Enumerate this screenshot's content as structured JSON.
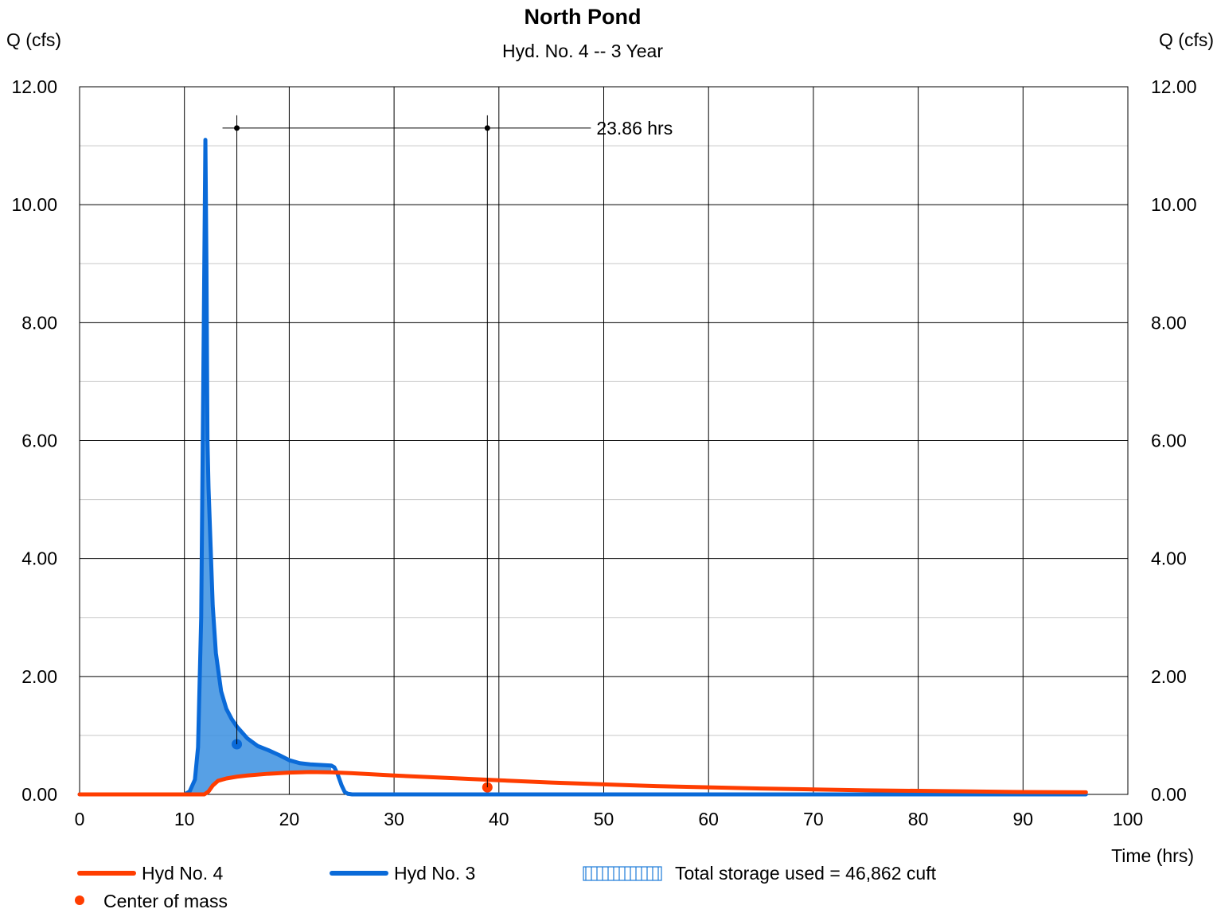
{
  "chart_data": {
    "type": "line",
    "title": "North Pond",
    "subtitle": "Hyd. No. 4 -- 3 Year",
    "ylabel_left": "Q (cfs)",
    "ylabel_right": "Q (cfs)",
    "xlabel": "Time (hrs)",
    "xlim": [
      0,
      100
    ],
    "ylim": [
      0,
      12
    ],
    "x_ticks": [
      "0",
      "10",
      "20",
      "30",
      "40",
      "50",
      "60",
      "70",
      "80",
      "90",
      "100"
    ],
    "y_ticks": [
      "0.00",
      "2.00",
      "4.00",
      "6.00",
      "8.00",
      "10.00",
      "12.00"
    ],
    "grid": true,
    "series": [
      {
        "name": "Hyd No. 3",
        "color": "#0a6ad8",
        "x": [
          0,
          10,
          10.5,
          11,
          11.3,
          11.6,
          11.8,
          12.0,
          12.1,
          12.2,
          12.3,
          12.5,
          12.7,
          13.0,
          13.5,
          14.0,
          14.5,
          15.0,
          15.5,
          16.0,
          17.0,
          18.0,
          19.0,
          20.0,
          21.0,
          22.0,
          23.0,
          24.0,
          24.3,
          24.6,
          25.0,
          25.3,
          25.6,
          26,
          96
        ],
        "y": [
          0,
          0,
          0.05,
          0.25,
          0.8,
          3.0,
          7.0,
          11.1,
          9.0,
          6.0,
          5.2,
          4.2,
          3.2,
          2.4,
          1.75,
          1.45,
          1.28,
          1.15,
          1.05,
          0.95,
          0.82,
          0.75,
          0.67,
          0.58,
          0.53,
          0.51,
          0.5,
          0.49,
          0.46,
          0.35,
          0.15,
          0.04,
          0.01,
          0,
          0
        ]
      },
      {
        "name": "Hyd No. 4",
        "color": "#ff3d00",
        "x": [
          0,
          11.9,
          12.3,
          12.7,
          13.2,
          14,
          15,
          16,
          18,
          20,
          22,
          24,
          26,
          30,
          35,
          40,
          45,
          50,
          55,
          60,
          65,
          70,
          75,
          80,
          85,
          90,
          96
        ],
        "y": [
          0,
          0,
          0.05,
          0.15,
          0.23,
          0.27,
          0.3,
          0.32,
          0.35,
          0.37,
          0.38,
          0.375,
          0.36,
          0.32,
          0.28,
          0.24,
          0.2,
          0.17,
          0.14,
          0.12,
          0.1,
          0.085,
          0.07,
          0.06,
          0.05,
          0.04,
          0.035
        ]
      }
    ],
    "centers_of_mass": [
      {
        "series": "Hyd No. 3",
        "x": 15.0,
        "y": 0.85,
        "color": "#0a6ad8"
      },
      {
        "series": "Hyd No. 4",
        "x": 38.9,
        "y": 0.12,
        "color": "#ff3d00"
      }
    ],
    "lag_annotation": {
      "x1": 15.0,
      "x2": 38.9,
      "y": 11.3,
      "label": "23.86 hrs"
    },
    "storage_fill_color": "#3a8fe0",
    "legend": {
      "placement": "bottom",
      "items": [
        {
          "label": "Hyd No. 4",
          "symbol": "line",
          "color": "#ff3d00"
        },
        {
          "label": "Hyd No. 3",
          "symbol": "line",
          "color": "#0a6ad8"
        },
        {
          "label": "Total storage used = 46,862 cuft",
          "symbol": "hatched-box",
          "color": "#1a7ad8"
        },
        {
          "label": "Center of mass",
          "symbol": "dot",
          "color": "#ff3d00"
        }
      ]
    }
  }
}
